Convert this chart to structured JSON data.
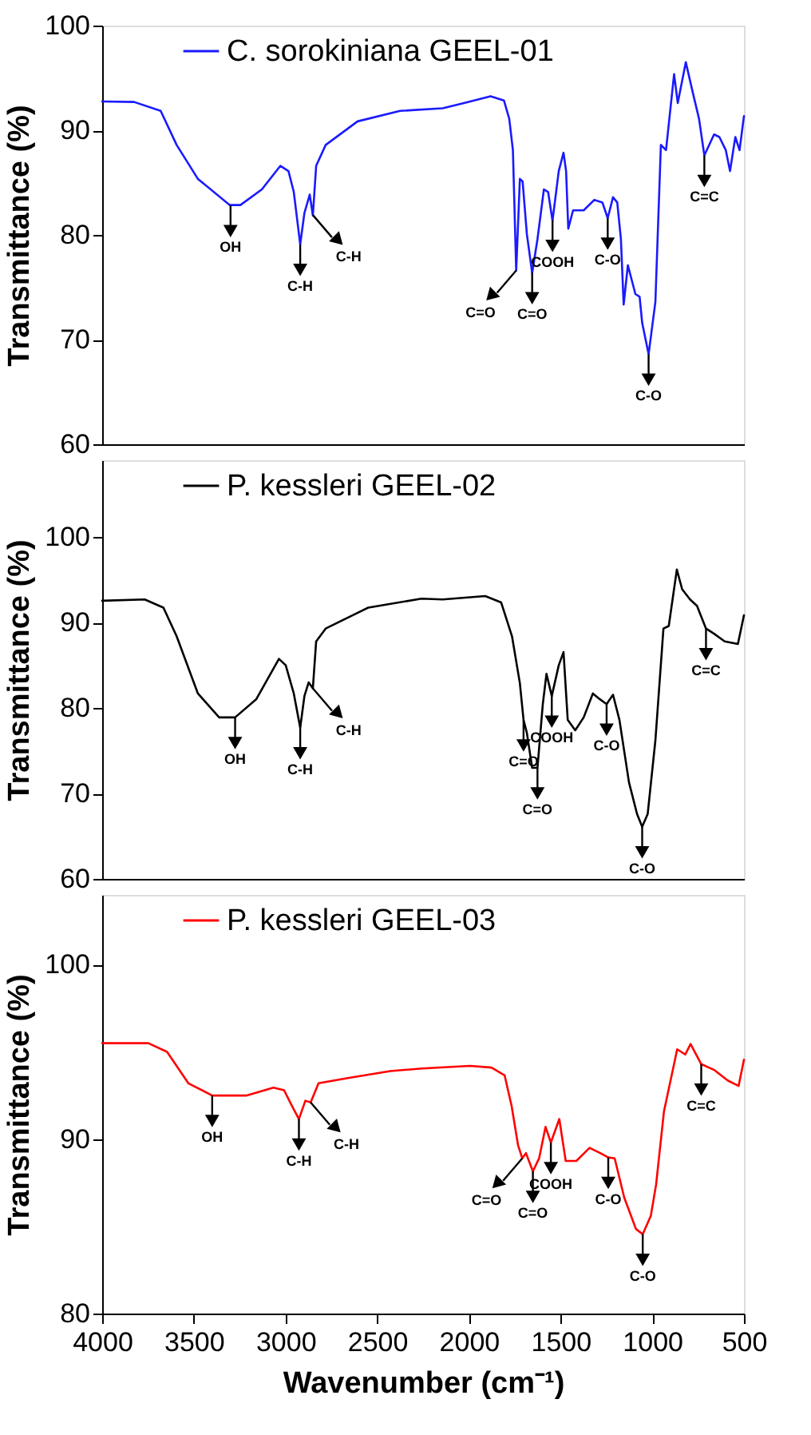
{
  "chart_data": [
    {
      "type": "line",
      "ylabel": "Transmittance (%)",
      "xlim": [
        4000,
        500
      ],
      "ylim": [
        60,
        100
      ],
      "yticks": [
        60,
        70,
        80,
        90,
        100
      ],
      "tick_labels": "y",
      "legend": "top",
      "grid": false,
      "series": [
        {
          "name": "C. sorokiniana GEEL-01",
          "color": "#1a1aff",
          "x": [
            4000,
            3826,
            3681,
            3594,
            3478,
            3304,
            3246,
            3129,
            3028,
            2984,
            2955,
            2920,
            2897,
            2868,
            2851,
            2833,
            2781,
            2607,
            2375,
            2143,
            2027,
            1882,
            1809,
            1780,
            1760,
            1742,
            1722,
            1707,
            1684,
            1655,
            1626,
            1591,
            1568,
            1544,
            1510,
            1484,
            1470,
            1458,
            1432,
            1374,
            1316,
            1272,
            1243,
            1214,
            1191,
            1171,
            1156,
            1133,
            1092,
            1069,
            1055,
            1020,
            983,
            953,
            925,
            881,
            861,
            817,
            779,
            745,
            716,
            663,
            634,
            599,
            576,
            547,
            524,
            500
          ],
          "values": [
            92.75,
            92.7,
            91.85,
            88.6,
            85.35,
            82.85,
            82.85,
            84.35,
            86.6,
            86.1,
            84.1,
            79.1,
            82.1,
            83.85,
            81.85,
            86.6,
            88.6,
            90.85,
            91.85,
            92.1,
            92.6,
            93.25,
            92.85,
            91.1,
            88.1,
            76.6,
            85.35,
            85.1,
            80.1,
            76.35,
            79.6,
            84.35,
            84.1,
            81.35,
            86.1,
            87.85,
            86.1,
            80.6,
            82.35,
            82.35,
            83.35,
            83.1,
            81.6,
            83.6,
            83.1,
            79.6,
            73.35,
            77.1,
            74.35,
            74.1,
            71.6,
            68.6,
            73.6,
            88.6,
            88.1,
            95.35,
            92.6,
            96.5,
            93.6,
            91.1,
            87.6,
            89.6,
            89.35,
            88.1,
            86.1,
            89.35,
            88.1,
            91.35
          ]
        }
      ],
      "annotations": [
        {
          "text": "OH",
          "x": 3300,
          "y": 82.8
        },
        {
          "text": "C-H",
          "x": 2920,
          "y": 79.1
        },
        {
          "text": "C-H",
          "x": 2851,
          "y": 81.9
        },
        {
          "text": "C=O",
          "x": 1742,
          "y": 76.6
        },
        {
          "text": "C=O",
          "x": 1655,
          "y": 76.4
        },
        {
          "text": "COOH",
          "x": 1544,
          "y": 81.4
        },
        {
          "text": "C-O",
          "x": 1243,
          "y": 81.6
        },
        {
          "text": "C-O",
          "x": 1020,
          "y": 68.6
        },
        {
          "text": "C=C",
          "x": 716,
          "y": 87.6
        }
      ]
    },
    {
      "type": "line",
      "ylabel": "Transmittance (%)",
      "xlim": [
        4000,
        500
      ],
      "ylim": [
        60,
        109
      ],
      "yticks": [
        60,
        70,
        80,
        90,
        100
      ],
      "tick_labels": "y",
      "legend": "top",
      "grid": false,
      "series": [
        {
          "name": "P. kessleri GEEL-02",
          "color": "#000000",
          "x": [
            4000,
            3768,
            3666,
            3594,
            3478,
            3362,
            3275,
            3159,
            3036,
            2999,
            2955,
            2920,
            2897,
            2874,
            2851,
            2833,
            2781,
            2549,
            2259,
            2143,
            1911,
            1824,
            1765,
            1722,
            1702,
            1684,
            1655,
            1626,
            1597,
            1577,
            1548,
            1510,
            1484,
            1461,
            1420,
            1374,
            1324,
            1287,
            1249,
            1214,
            1179,
            1127,
            1083,
            1055,
            1025,
            983,
            939,
            910,
            866,
            837,
            794,
            756,
            707,
            663,
            605,
            533,
            500
          ],
          "values": [
            92.55,
            92.7,
            91.75,
            88.4,
            81.7,
            78.9,
            78.9,
            81.05,
            85.75,
            85.0,
            81.7,
            77.7,
            81.4,
            83.0,
            82.3,
            87.8,
            89.3,
            91.75,
            92.8,
            92.7,
            93.1,
            92.35,
            88.4,
            82.9,
            78.6,
            77.1,
            73.0,
            73.0,
            80.45,
            84.0,
            81.4,
            85.0,
            86.55,
            78.6,
            77.4,
            78.9,
            81.7,
            81.05,
            80.45,
            81.55,
            78.6,
            71.3,
            67.6,
            66.1,
            67.6,
            76.2,
            89.3,
            89.6,
            96.2,
            93.9,
            92.7,
            91.95,
            89.3,
            88.7,
            87.8,
            87.5,
            90.85
          ]
        }
      ],
      "annotations": [
        {
          "text": "OH",
          "x": 3275,
          "y": 78.9
        },
        {
          "text": "C-H",
          "x": 2920,
          "y": 77.7
        },
        {
          "text": "C-H",
          "x": 2851,
          "y": 82.3
        },
        {
          "text": "C=O",
          "x": 1702,
          "y": 78.6
        },
        {
          "text": "C=O",
          "x": 1626,
          "y": 73.0
        },
        {
          "text": "COOH",
          "x": 1548,
          "y": 81.4
        },
        {
          "text": "C-O",
          "x": 1249,
          "y": 80.45
        },
        {
          "text": "C-O",
          "x": 1055,
          "y": 66.1
        },
        {
          "text": "C=C",
          "x": 707,
          "y": 89.3
        }
      ]
    },
    {
      "type": "line",
      "xlabel": "Wavenumber (cm⁻¹)",
      "ylabel": "Transmittance (%)",
      "xlim": [
        4000,
        500
      ],
      "xticks": [
        4000,
        3500,
        3000,
        2500,
        2000,
        1500,
        1000,
        500
      ],
      "ylim": [
        80,
        104
      ],
      "yticks": [
        80,
        90,
        100
      ],
      "legend": "top",
      "grid": false,
      "series": [
        {
          "name": "P. kessleri GEEL-03",
          "color": "#ff0000",
          "x": [
            4000,
            3748,
            3646,
            3530,
            3400,
            3211,
            3066,
            3008,
            2965,
            2927,
            2892,
            2863,
            2820,
            2660,
            2428,
            2254,
            1993,
            1877,
            1805,
            1767,
            1732,
            1709,
            1689,
            1651,
            1617,
            1582,
            1553,
            1507,
            1472,
            1414,
            1342,
            1284,
            1240,
            1205,
            1153,
            1089,
            1052,
            1008,
            979,
            936,
            864,
            820,
            791,
            733,
            660,
            587,
            529,
            500
          ],
          "values": [
            95.5,
            95.5,
            95.0,
            93.2,
            92.5,
            92.5,
            92.95,
            92.8,
            91.9,
            91.15,
            92.2,
            92.1,
            93.2,
            93.5,
            93.9,
            94.05,
            94.2,
            94.1,
            93.65,
            91.9,
            89.65,
            88.9,
            89.2,
            88.15,
            88.9,
            90.7,
            89.8,
            91.15,
            88.75,
            88.75,
            89.5,
            89.2,
            88.95,
            88.9,
            86.65,
            84.85,
            84.55,
            85.6,
            87.4,
            91.6,
            95.15,
            94.85,
            95.45,
            94.3,
            93.95,
            93.35,
            93.05,
            94.55
          ]
        }
      ],
      "annotations": [
        {
          "text": "OH",
          "x": 3400,
          "y": 92.5
        },
        {
          "text": "C-H",
          "x": 2927,
          "y": 91.15
        },
        {
          "text": "C-H",
          "x": 2863,
          "y": 92.1
        },
        {
          "text": "C=O",
          "x": 1709,
          "y": 88.9
        },
        {
          "text": "C=O",
          "x": 1651,
          "y": 88.15
        },
        {
          "text": "COOH",
          "x": 1553,
          "y": 89.8
        },
        {
          "text": "C-O",
          "x": 1240,
          "y": 88.95
        },
        {
          "text": "C-O",
          "x": 1052,
          "y": 84.55
        },
        {
          "text": "C=C",
          "x": 733,
          "y": 94.3
        }
      ]
    }
  ]
}
